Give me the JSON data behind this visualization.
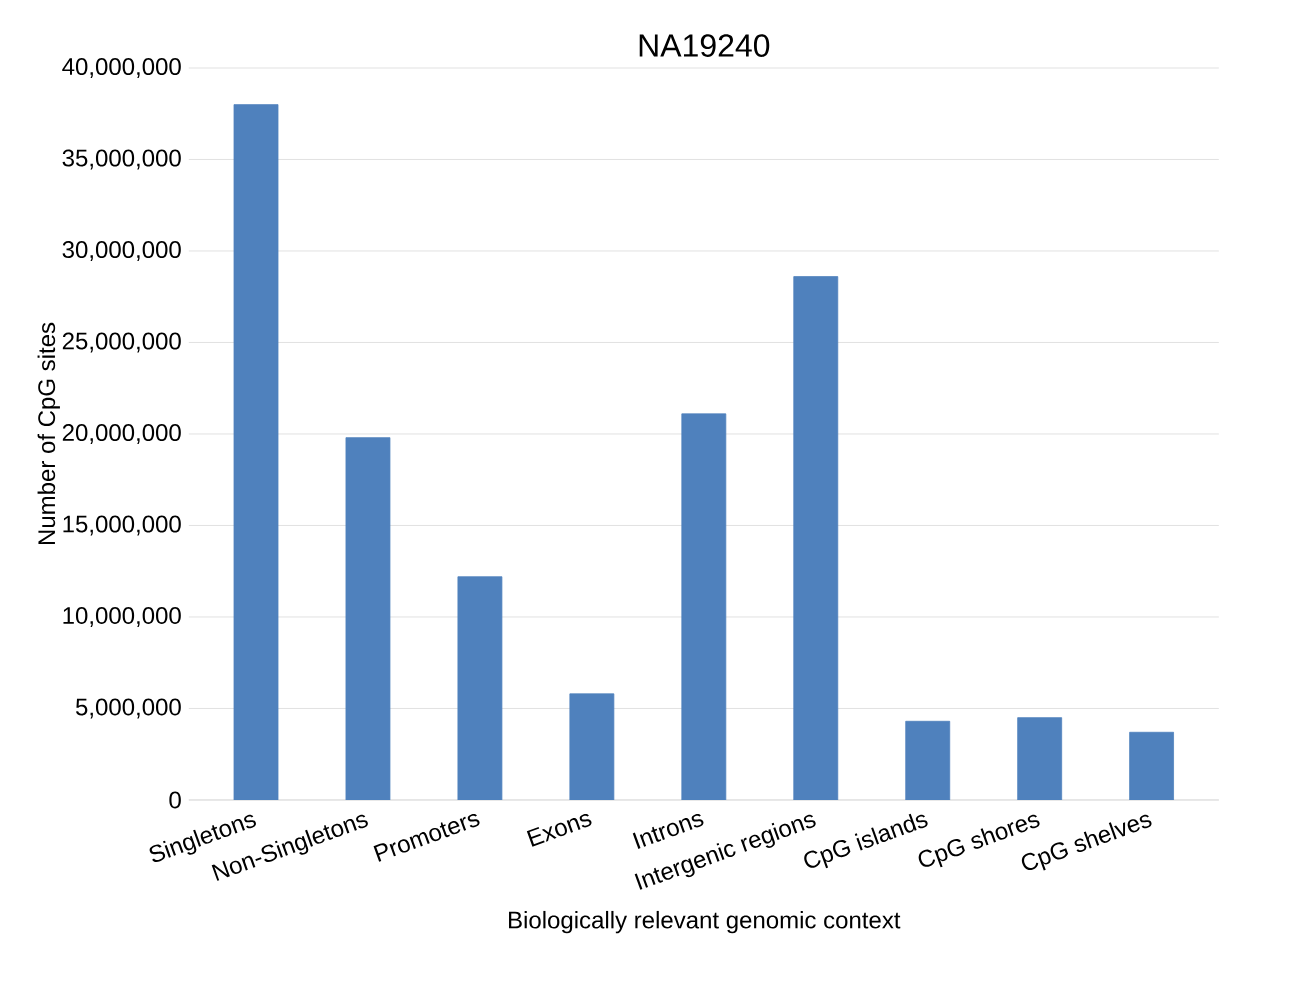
{
  "chart_data": {
    "type": "bar",
    "title": "NA19240",
    "xlabel": "Biologically relevant genomic context",
    "ylabel": "Number of CpG sites",
    "categories": [
      "Singletons",
      "Non-Singletons",
      "Promoters",
      "Exons",
      "Introns",
      "Intergenic regions",
      "CpG islands",
      "CpG shores",
      "CpG shelves"
    ],
    "values": [
      38000000,
      19800000,
      12200000,
      5800000,
      21100000,
      28600000,
      4300000,
      4500000,
      3700000
    ],
    "color": "#4f81bd",
    "ylim": [
      0,
      40000000
    ],
    "yticks": [
      {
        "value": 0,
        "label": "0"
      },
      {
        "value": 5000000,
        "label": "5,000,000"
      },
      {
        "value": 10000000,
        "label": "10,000,000"
      },
      {
        "value": 15000000,
        "label": "15,000,000"
      },
      {
        "value": 20000000,
        "label": "20,000,000"
      },
      {
        "value": 25000000,
        "label": "25,000,000"
      },
      {
        "value": 30000000,
        "label": "30,000,000"
      },
      {
        "value": 35000000,
        "label": "35,000,000"
      },
      {
        "value": 40000000,
        "label": "40,000,000"
      }
    ],
    "grid": "y"
  }
}
